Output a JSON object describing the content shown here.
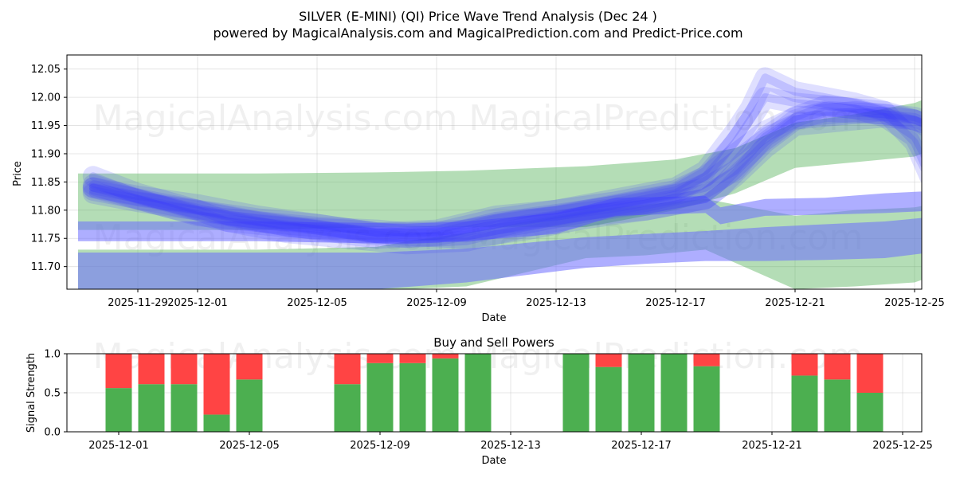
{
  "chart_data": [
    {
      "type": "area",
      "title": "SILVER (E-MINI) (QI) Price Wave Trend Analysis (Dec 24 )",
      "subtitle": "powered by MagicalAnalysis.com and MagicalPrediction.com and Predict-Price.com",
      "xlabel": "Date",
      "ylabel": "Price",
      "ylim": [
        11.66,
        12.075
      ],
      "x_ticks": [
        "2025-11-29",
        "2025-12-01",
        "2025-12-05",
        "2025-12-09",
        "2025-12-13",
        "2025-12-17",
        "2025-12-21",
        "2025-12-25"
      ],
      "y_ticks": [
        "11.70",
        "11.75",
        "11.80",
        "11.85",
        "11.90",
        "11.95",
        "12.00",
        "12.05"
      ],
      "grid": true,
      "watermark": "MagicalAnalysis.com    MagicalPrediction.com",
      "colors": {
        "green_band": "#4caf50",
        "blue_band": "#6b6bff",
        "wave": "#3a3aff"
      },
      "green_bands": [
        {
          "name": "upper-green",
          "x": [
            0,
            6,
            10,
            13,
            17,
            20,
            22,
            24,
            26,
            28,
            29
          ],
          "lower": [
            11.765,
            11.765,
            11.77,
            11.77,
            11.77,
            11.8,
            11.83,
            11.875,
            11.885,
            11.895,
            11.915
          ],
          "upper": [
            11.865,
            11.865,
            11.867,
            11.87,
            11.878,
            11.89,
            11.91,
            11.955,
            11.97,
            11.99,
            12.01
          ]
        },
        {
          "name": "lower-green",
          "x": [
            0,
            6,
            10,
            11,
            13,
            15,
            17,
            19,
            21,
            24,
            26,
            28,
            29
          ],
          "lower": [
            11.655,
            11.655,
            11.655,
            11.66,
            11.665,
            11.69,
            11.715,
            11.72,
            11.73,
            11.66,
            11.665,
            11.672,
            11.69
          ],
          "upper": [
            11.73,
            11.73,
            11.735,
            11.745,
            11.76,
            11.78,
            11.8,
            11.81,
            11.82,
            11.79,
            11.8,
            11.805,
            11.815
          ]
        }
      ],
      "blue_bands": [
        {
          "name": "flat-blue",
          "x": [
            0,
            6,
            9,
            11,
            13,
            16,
            18,
            21,
            21.5,
            23,
            25,
            27,
            29
          ],
          "lower": [
            11.745,
            11.745,
            11.742,
            11.74,
            11.745,
            11.758,
            11.79,
            11.795,
            11.775,
            11.79,
            11.792,
            11.795,
            11.8
          ],
          "upper": [
            11.78,
            11.78,
            11.778,
            11.776,
            11.78,
            11.795,
            11.822,
            11.825,
            11.805,
            11.82,
            11.822,
            11.83,
            11.835
          ]
        },
        {
          "name": "low-blue",
          "x": [
            0,
            10,
            13,
            15,
            17,
            19,
            21,
            23,
            25,
            27,
            29
          ],
          "lower": [
            11.66,
            11.66,
            11.672,
            11.685,
            11.698,
            11.705,
            11.71,
            11.71,
            11.712,
            11.715,
            11.728
          ],
          "upper": [
            11.725,
            11.725,
            11.732,
            11.742,
            11.752,
            11.758,
            11.763,
            11.77,
            11.775,
            11.78,
            11.79
          ]
        }
      ],
      "waves": [
        {
          "x": [
            0.5,
            2,
            4,
            6,
            8,
            10,
            11,
            13,
            15,
            17,
            19,
            21,
            21.5,
            23,
            24,
            25,
            27,
            28,
            28.5
          ],
          "y": [
            11.84,
            11.825,
            11.81,
            11.79,
            11.775,
            11.76,
            11.755,
            11.75,
            11.765,
            11.785,
            11.8,
            11.82,
            11.84,
            11.92,
            11.96,
            11.975,
            11.97,
            11.96,
            11.95
          ]
        },
        {
          "x": [
            0.5,
            2,
            4,
            6,
            8,
            10,
            11,
            13,
            15,
            17,
            19,
            21,
            22,
            23,
            24,
            25,
            27,
            28,
            28.5
          ],
          "y": [
            11.835,
            11.82,
            11.8,
            11.78,
            11.77,
            11.765,
            11.76,
            11.765,
            11.785,
            11.8,
            11.815,
            11.84,
            11.87,
            11.93,
            11.965,
            11.985,
            11.975,
            11.96,
            11.945
          ]
        },
        {
          "x": [
            0.5,
            2,
            4,
            5,
            7,
            9,
            10,
            12,
            14,
            16,
            18,
            20,
            21,
            22,
            22.5,
            23,
            24,
            26,
            27,
            28,
            28.5
          ],
          "y": [
            11.86,
            11.83,
            11.8,
            11.78,
            11.77,
            11.765,
            11.76,
            11.76,
            11.785,
            11.8,
            11.82,
            11.84,
            11.87,
            11.94,
            11.98,
            12.035,
            12.01,
            11.99,
            11.975,
            11.92,
            11.86
          ]
        },
        {
          "x": [
            0.5,
            2,
            4,
            6,
            8,
            10,
            12,
            14,
            16,
            18,
            20,
            21,
            22,
            23,
            24,
            26,
            27,
            28,
            28.5
          ],
          "y": [
            11.845,
            11.82,
            11.79,
            11.78,
            11.765,
            11.75,
            11.755,
            11.775,
            11.79,
            11.81,
            11.83,
            11.86,
            11.92,
            12.0,
            11.99,
            11.98,
            11.965,
            11.93,
            11.88
          ]
        },
        {
          "x": [
            0.5,
            2,
            4,
            6,
            8,
            10,
            12,
            14,
            16,
            18,
            20,
            21,
            22,
            23,
            24,
            26,
            27,
            28,
            28.5
          ],
          "y": [
            11.83,
            11.815,
            11.8,
            11.785,
            11.775,
            11.76,
            11.765,
            11.79,
            11.8,
            11.815,
            11.835,
            11.86,
            11.9,
            11.94,
            11.965,
            11.975,
            11.97,
            11.965,
            11.955
          ]
        },
        {
          "x": [
            0.5,
            3,
            5,
            7,
            9,
            11,
            13,
            15,
            17,
            19,
            21,
            22,
            23,
            24,
            26,
            27,
            28,
            28.5
          ],
          "y": [
            11.84,
            11.805,
            11.78,
            11.76,
            11.75,
            11.74,
            11.745,
            11.77,
            11.79,
            11.8,
            11.82,
            11.86,
            11.91,
            11.95,
            11.96,
            11.965,
            11.96,
            11.95
          ]
        }
      ]
    },
    {
      "type": "bar",
      "title": "Buy and Sell Powers",
      "xlabel": "Date",
      "ylabel": "Signal Strength",
      "ylim": [
        0,
        1.0
      ],
      "x_ticks": [
        "2025-12-01",
        "2025-12-05",
        "2025-12-09",
        "2025-12-13",
        "2025-12-17",
        "2025-12-21",
        "2025-12-25"
      ],
      "y_ticks": [
        "0.0",
        "0.5",
        "1.0"
      ],
      "watermark": "MagicalAnalysis.com    MagicalPrediction.com",
      "colors": {
        "buy": "#4caf50",
        "sell": "#ff4444"
      },
      "days": [
        1,
        2,
        3,
        4,
        5,
        8,
        9,
        10,
        11,
        12,
        15,
        16,
        17,
        18,
        19,
        22,
        23,
        24
      ],
      "series": [
        {
          "name": "Buy",
          "values": [
            0.56,
            0.61,
            0.61,
            0.22,
            0.67,
            0.61,
            0.88,
            0.88,
            0.94,
            1.0,
            1.0,
            0.83,
            1.0,
            1.0,
            0.84,
            0.72,
            0.67,
            0.5
          ]
        },
        {
          "name": "Sell",
          "values": [
            0.44,
            0.39,
            0.39,
            0.78,
            0.33,
            0.39,
            0.12,
            0.12,
            0.06,
            0.0,
            0.0,
            0.17,
            0.0,
            0.0,
            0.16,
            0.28,
            0.33,
            0.5
          ]
        }
      ]
    }
  ]
}
